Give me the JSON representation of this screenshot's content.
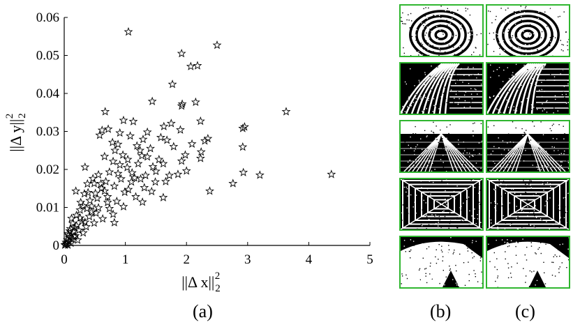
{
  "chart_data": {
    "type": "scatter",
    "xlabel": "||Δ x||",
    "xlabel_sub": "2",
    "xlabel_sup": "2",
    "ylabel": "||Δ y||",
    "ylabel_sub": "2",
    "ylabel_sup": "2",
    "xlim": [
      0,
      5
    ],
    "ylim": [
      0,
      0.06
    ],
    "xticks": [
      "0",
      "1",
      "2",
      "3",
      "4",
      "5"
    ],
    "yticks": [
      "0",
      "0.01",
      "0.02",
      "0.03",
      "0.04",
      "0.05",
      "0.06"
    ],
    "marker": "star",
    "series": [
      {
        "points": [
          [
            1.05,
            0.0562
          ],
          [
            2.5,
            0.0527
          ],
          [
            1.92,
            0.0505
          ],
          [
            2.07,
            0.0471
          ],
          [
            2.18,
            0.0473
          ],
          [
            1.77,
            0.0424
          ],
          [
            2.15,
            0.0377
          ],
          [
            1.44,
            0.0379
          ],
          [
            1.92,
            0.0367
          ],
          [
            1.93,
            0.0372
          ],
          [
            3.63,
            0.0352
          ],
          [
            0.67,
            0.0352
          ],
          [
            1.13,
            0.0326
          ],
          [
            0.97,
            0.0329
          ],
          [
            2.23,
            0.0327
          ],
          [
            1.75,
            0.0321
          ],
          [
            2.92,
            0.0308
          ],
          [
            2.95,
            0.0312
          ],
          [
            0.72,
            0.0306
          ],
          [
            0.62,
            0.0303
          ],
          [
            0.91,
            0.0296
          ],
          [
            1.36,
            0.0298
          ],
          [
            1.63,
            0.0313
          ],
          [
            1.9,
            0.0304
          ],
          [
            2.35,
            0.0281
          ],
          [
            2.3,
            0.0275
          ],
          [
            1.08,
            0.0288
          ],
          [
            0.58,
            0.029
          ],
          [
            1.68,
            0.0277
          ],
          [
            1.29,
            0.0279
          ],
          [
            0.88,
            0.0266
          ],
          [
            1.19,
            0.0262
          ],
          [
            2.92,
            0.0259
          ],
          [
            1.79,
            0.026
          ],
          [
            1.24,
            0.025
          ],
          [
            0.83,
            0.025
          ],
          [
            2.24,
            0.0246
          ],
          [
            1.98,
            0.0238
          ],
          [
            2.23,
            0.0229
          ],
          [
            1.55,
            0.0226
          ],
          [
            0.96,
            0.0238
          ],
          [
            1.36,
            0.0233
          ],
          [
            0.66,
            0.0234
          ],
          [
            0.8,
            0.0221
          ],
          [
            1.62,
            0.0215
          ],
          [
            1.03,
            0.0205
          ],
          [
            0.34,
            0.0206
          ],
          [
            1.45,
            0.0207
          ],
          [
            2.0,
            0.0196
          ],
          [
            1.86,
            0.0187
          ],
          [
            2.93,
            0.0192
          ],
          [
            3.2,
            0.0185
          ],
          [
            4.37,
            0.0187
          ],
          [
            1.11,
            0.0191
          ],
          [
            0.74,
            0.0193
          ],
          [
            1.33,
            0.0184
          ],
          [
            0.56,
            0.0186
          ],
          [
            1.25,
            0.0175
          ],
          [
            1.66,
            0.0168
          ],
          [
            0.47,
            0.0176
          ],
          [
            0.93,
            0.0175
          ],
          [
            1.1,
            0.0167
          ],
          [
            1.49,
            0.0167
          ],
          [
            2.76,
            0.0163
          ],
          [
            2.38,
            0.0143
          ],
          [
            0.68,
            0.0168
          ],
          [
            0.82,
            0.0156
          ],
          [
            0.38,
            0.0162
          ],
          [
            1.31,
            0.0152
          ],
          [
            0.61,
            0.015
          ],
          [
            0.99,
            0.014
          ],
          [
            0.51,
            0.0137
          ],
          [
            1.17,
            0.0128
          ],
          [
            0.33,
            0.0136
          ],
          [
            0.19,
            0.0143
          ],
          [
            1.28,
            0.0114
          ],
          [
            0.86,
            0.0116
          ],
          [
            0.71,
            0.0113
          ],
          [
            0.42,
            0.0118
          ],
          [
            0.97,
            0.0102
          ],
          [
            0.56,
            0.0099
          ],
          [
            0.31,
            0.0104
          ],
          [
            0.52,
            0.0085
          ],
          [
            0.8,
            0.0082
          ],
          [
            0.26,
            0.0093
          ],
          [
            0.41,
            0.0076
          ],
          [
            0.63,
            0.007
          ],
          [
            0.82,
            0.006
          ],
          [
            0.29,
            0.0064
          ],
          [
            0.49,
            0.0059
          ],
          [
            0.12,
            0.0071
          ],
          [
            0.36,
            0.0049
          ],
          [
            0.2,
            0.0052
          ],
          [
            0.24,
            0.004
          ],
          [
            0.1,
            0.0044
          ],
          [
            0.15,
            0.0036
          ],
          [
            0.31,
            0.0033
          ],
          [
            0.06,
            0.0031
          ],
          [
            0.18,
            0.0025
          ],
          [
            0.09,
            0.0022
          ],
          [
            0.13,
            0.0017
          ],
          [
            0.05,
            0.0015
          ],
          [
            0.22,
            0.0014
          ],
          [
            0.08,
            0.001
          ],
          [
            0.03,
            0.0008
          ],
          [
            0.11,
            0.0006
          ],
          [
            0.04,
            0.0004
          ],
          [
            0.02,
            0.0002
          ],
          [
            0.06,
            0.0001
          ],
          [
            0.01,
            0.0001
          ],
          [
            0.07,
            0.0027
          ],
          [
            0.14,
            0.0058
          ],
          [
            0.26,
            0.0072
          ],
          [
            0.45,
            0.0103
          ],
          [
            0.54,
            0.0124
          ],
          [
            0.39,
            0.0139
          ],
          [
            0.71,
            0.0128
          ],
          [
            0.6,
            0.0162
          ],
          [
            0.88,
            0.0189
          ],
          [
            1.04,
            0.0226
          ],
          [
            1.21,
            0.0215
          ],
          [
            1.41,
            0.0255
          ],
          [
            1.5,
            0.0195
          ],
          [
            1.72,
            0.0184
          ],
          [
            1.05,
            0.0147
          ],
          [
            0.74,
            0.0097
          ],
          [
            0.45,
            0.0088
          ],
          [
            0.34,
            0.0061
          ],
          [
            0.17,
            0.0047
          ],
          [
            0.09,
            0.0038
          ],
          [
            0.27,
            0.0113
          ],
          [
            0.49,
            0.0163
          ],
          [
            0.79,
            0.0271
          ],
          [
            1.43,
            0.0142
          ],
          [
            1.62,
            0.0126
          ],
          [
            1.92,
            0.0222
          ],
          [
            2.09,
            0.0267
          ],
          [
            1.58,
            0.0284
          ],
          [
            1.27,
            0.0236
          ],
          [
            0.91,
            0.0212
          ],
          [
            1.15,
            0.0178
          ],
          [
            0.66,
            0.0143
          ],
          [
            0.37,
            0.0097
          ],
          [
            0.2,
            0.0079
          ],
          [
            0.16,
            0.0023
          ]
        ]
      }
    ]
  },
  "captions": {
    "a": "(a)",
    "b": "(b)",
    "c": "(c)"
  },
  "thumbnails": {
    "rows": [
      {
        "name": "spiral",
        "b": "binary-pattern",
        "c": "binary-pattern"
      },
      {
        "name": "curved-stripes",
        "b": "binary-pattern",
        "c": "binary-pattern"
      },
      {
        "name": "building-perspective",
        "b": "binary-pattern",
        "c": "binary-pattern"
      },
      {
        "name": "grid-tunnel",
        "b": "binary-pattern",
        "c": "binary-pattern"
      },
      {
        "name": "speckled-scene",
        "b": "binary-pattern",
        "c": "binary-pattern"
      }
    ],
    "border_color": "#2fb62f"
  }
}
